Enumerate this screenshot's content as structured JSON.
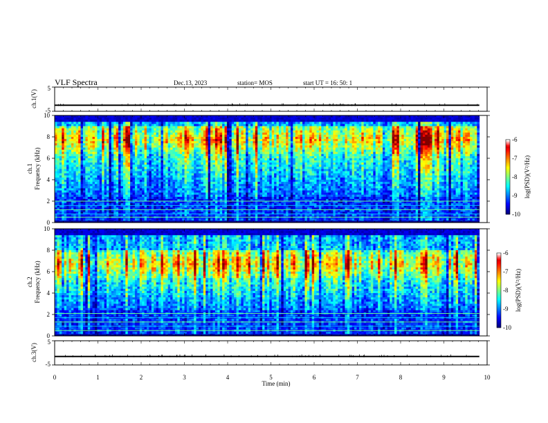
{
  "header": {
    "title": "VLF Spectra",
    "date": "Dec.13, 2023",
    "station": "station= MOS",
    "start": "start  UT =   16: 50: 1"
  },
  "chart_data": [
    {
      "type": "line",
      "name": "ch1-waveform",
      "ylabel": "ch.1(V)",
      "ylim": [
        -5,
        5
      ],
      "yticks": [
        "5",
        "-5"
      ],
      "level": -2.5,
      "xlim": [
        0,
        10
      ],
      "data_end": 9.82
    },
    {
      "type": "heatmap",
      "name": "ch1-spectrogram",
      "ylabel_lines": [
        "ch.1",
        "Frequency (kHz)"
      ],
      "ylim": [
        0,
        10
      ],
      "yticks": [
        "0",
        "2",
        "4",
        "6",
        "8",
        "10"
      ],
      "xlim": [
        0,
        10
      ],
      "data_end": 9.82,
      "band_kHz": [
        6.5,
        9.0
      ],
      "hum_lines_kHz": [
        0.5,
        0.8,
        1.2,
        1.6,
        2.0
      ],
      "colorbar": {
        "ticks": [
          "-6",
          "-7",
          "-8",
          "-9",
          "-10"
        ],
        "label": "log(PSD)(V²/Hz)",
        "range": [
          -10,
          -6
        ]
      }
    },
    {
      "type": "heatmap",
      "name": "ch2-spectrogram",
      "ylabel_lines": [
        "ch.2",
        "Frequency (kHz)"
      ],
      "ylim": [
        0,
        10
      ],
      "yticks": [
        "0",
        "2",
        "4",
        "6",
        "8",
        "10"
      ],
      "xlim": [
        0,
        10
      ],
      "data_end": 9.82,
      "band_kHz": [
        5.5,
        8.0
      ],
      "hum_lines_kHz": [
        0.5,
        0.9,
        1.3,
        1.7,
        2.1
      ],
      "colorbar": {
        "ticks": [
          "-6",
          "-7",
          "-8",
          "-9",
          "-10"
        ],
        "label": "log(PSD)(V²/Hz)",
        "range": [
          -10,
          -6
        ]
      }
    },
    {
      "type": "line",
      "name": "ch3-waveform",
      "ylabel": "ch.3(V)",
      "ylim": [
        -5,
        5
      ],
      "yticks": [
        "5",
        "-5"
      ],
      "level": -1.5,
      "xlim": [
        0,
        10
      ],
      "data_end": 9.82,
      "xticks": [
        "0",
        "1",
        "2",
        "3",
        "4",
        "5",
        "6",
        "7",
        "8",
        "9",
        "10"
      ],
      "xlabel": "Time (min)"
    }
  ]
}
